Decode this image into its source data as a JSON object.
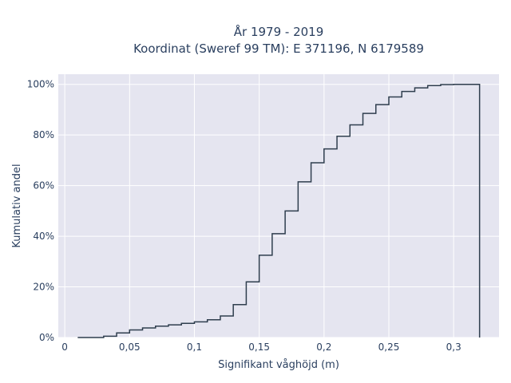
{
  "chart_data": {
    "type": "line",
    "title_line1": "År 1979 - 2019",
    "title_line2": "Koordinat (Sweref 99 TM): E 371196, N 6179589",
    "xlabel": "Signifikant våghöjd (m)",
    "ylabel": "Kumulativ andel",
    "xlim": [
      -0.005,
      0.335
    ],
    "ylim": [
      0,
      1.04
    ],
    "x_ticks": [
      0,
      0.05,
      0.1,
      0.15,
      0.2,
      0.25,
      0.3
    ],
    "x_tick_labels": [
      "0",
      "0,05",
      "0,1",
      "0,15",
      "0,2",
      "0,25",
      "0,3"
    ],
    "y_ticks": [
      0,
      0.2,
      0.4,
      0.6,
      0.8,
      1.0
    ],
    "y_tick_labels": [
      "0%",
      "20%",
      "40%",
      "60%",
      "80%",
      "100%"
    ],
    "grid": true,
    "step_edges": [
      0.01,
      0.02,
      0.03,
      0.04,
      0.05,
      0.06,
      0.07,
      0.08,
      0.09,
      0.1,
      0.11,
      0.12,
      0.13,
      0.14,
      0.15,
      0.16,
      0.17,
      0.18,
      0.19,
      0.2,
      0.21,
      0.22,
      0.23,
      0.24,
      0.25,
      0.26,
      0.27,
      0.28,
      0.29,
      0.3,
      0.31,
      0.32
    ],
    "cumulative_values": [
      0.0,
      0.0,
      0.005,
      0.018,
      0.03,
      0.038,
      0.045,
      0.05,
      0.056,
      0.062,
      0.07,
      0.085,
      0.13,
      0.22,
      0.325,
      0.41,
      0.5,
      0.615,
      0.69,
      0.745,
      0.795,
      0.84,
      0.885,
      0.92,
      0.95,
      0.972,
      0.986,
      0.995,
      0.999,
      1.0,
      1.0
    ],
    "colors": {
      "plot_bg": "#e5e5f0",
      "grid": "#ffffff",
      "line": "#2f3e4e",
      "text": "#2a3f5f"
    }
  }
}
